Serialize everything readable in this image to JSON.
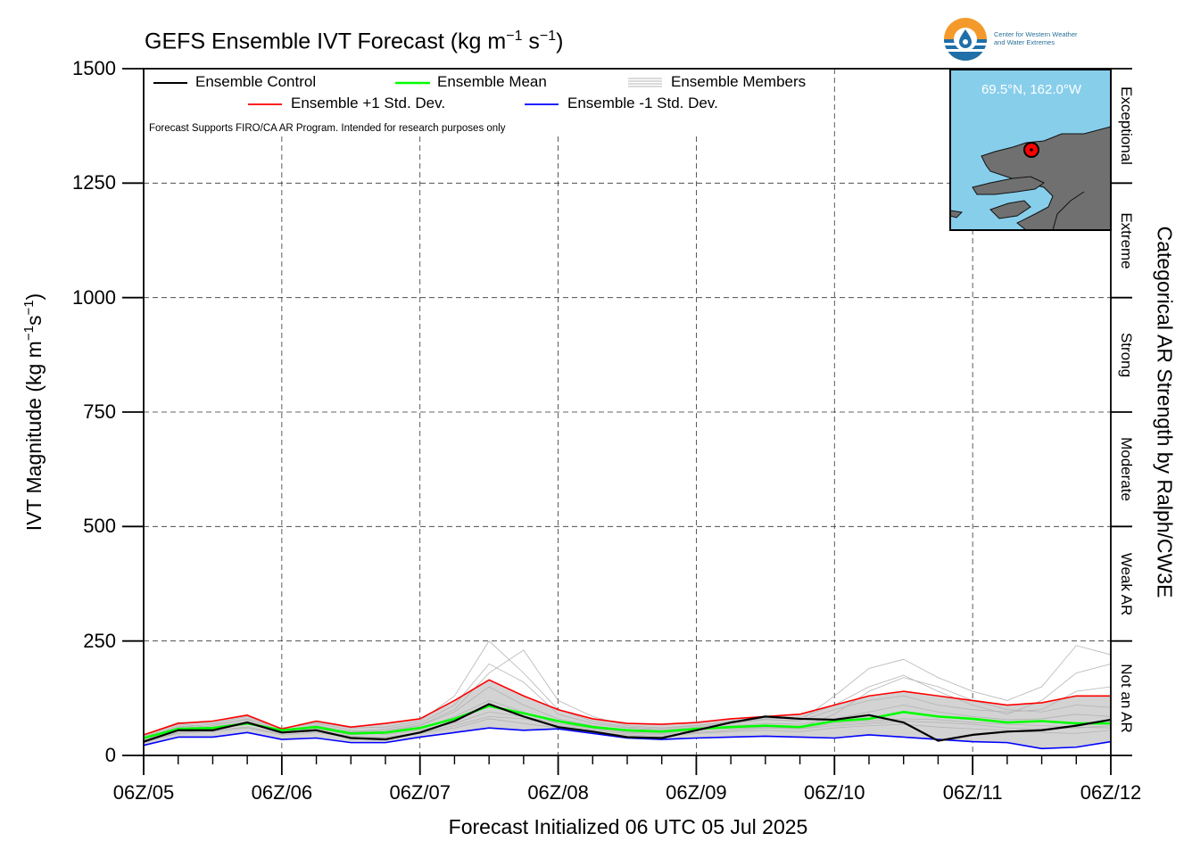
{
  "title": {
    "main": "GEFS Ensemble IVT Forecast (kg m",
    "sup1": "−1",
    "mid": " s",
    "sup2": "−1",
    "end": ")"
  },
  "logo": {
    "line1": "Center for Western Weather",
    "line2": "and Water Extremes"
  },
  "inset": {
    "location_label": "69.5°N, 162.0°W",
    "ocean_color": "#87ceeb",
    "land_color": "#707070",
    "marker_color": "#ff0000"
  },
  "legend": {
    "control": "Ensemble Control",
    "mean": "Ensemble Mean",
    "members": "Ensemble Members",
    "plus_std": "Ensemble +1 Std. Dev.",
    "minus_std": "Ensemble -1 Std. Dev."
  },
  "disclaimer": "Forecast Supports FIRO/CA AR Program. Intended for research purposes only",
  "y_axis_title": {
    "prefix": "IVT Magnitude (kg m",
    "sup1": "−1",
    "mid": "s",
    "sup2": "−1",
    "end": ")"
  },
  "x_axis_title": "Forecast Initialized 06 UTC 05 Jul 2025",
  "right_axis_title": "Categorical AR Strength by Ralph/CW3E",
  "categories_right": [
    {
      "label": "Exceptional",
      "low": 1250,
      "high": 1500
    },
    {
      "label": "Extreme",
      "low": 1000,
      "high": 1250
    },
    {
      "label": "Strong",
      "low": 750,
      "high": 1000
    },
    {
      "label": "Moderate",
      "low": 500,
      "high": 750
    },
    {
      "label": "Weak AR",
      "low": 250,
      "high": 500
    },
    {
      "label": "Not an AR",
      "low": 0,
      "high": 250
    }
  ],
  "chart_data": {
    "type": "line",
    "title": "GEFS Ensemble IVT Forecast (kg m−1 s−1)",
    "xlabel": "Forecast Initialized 06 UTC 05 Jul 2025",
    "ylabel": "IVT Magnitude (kg m−1s−1)",
    "ylim": [
      0,
      1500
    ],
    "xlim": [
      0,
      168
    ],
    "x_unit": "forecast hours",
    "y_ticks": [
      "0",
      "250",
      "500",
      "750",
      "1000",
      "1250",
      "1500"
    ],
    "x_tick_labels": [
      "06Z/05",
      "06Z/06",
      "06Z/07",
      "06Z/08",
      "06Z/09",
      "06Z/10",
      "06Z/11",
      "06Z/12"
    ],
    "grid": true,
    "colors": {
      "control": "#000000",
      "mean": "#00ff00",
      "plus_std": "#ff0000",
      "minus_std": "#0000ff",
      "members": "#b4b4b4",
      "spread_fill": "#d3d3d3"
    },
    "x": [
      0,
      6,
      12,
      18,
      24,
      30,
      36,
      42,
      48,
      54,
      60,
      66,
      72,
      78,
      84,
      90,
      96,
      102,
      108,
      114,
      120,
      126,
      132,
      138,
      144,
      150,
      156,
      162,
      168
    ],
    "series": [
      {
        "name": "Ensemble Control",
        "values": [
          30,
          55,
          55,
          72,
          50,
          55,
          38,
          35,
          50,
          75,
          112,
          85,
          62,
          52,
          40,
          38,
          55,
          72,
          85,
          80,
          78,
          88,
          72,
          32,
          45,
          52,
          55,
          65,
          78
        ]
      },
      {
        "name": "Ensemble Mean",
        "values": [
          38,
          58,
          60,
          70,
          55,
          62,
          48,
          50,
          60,
          80,
          108,
          92,
          75,
          62,
          55,
          52,
          58,
          62,
          65,
          62,
          75,
          80,
          95,
          85,
          80,
          72,
          75,
          70,
          70
        ]
      },
      {
        "name": "Ensemble +1 Std. Dev.",
        "values": [
          45,
          70,
          75,
          88,
          58,
          75,
          62,
          70,
          80,
          120,
          165,
          130,
          100,
          80,
          70,
          68,
          72,
          80,
          85,
          90,
          110,
          130,
          140,
          130,
          120,
          110,
          115,
          130,
          130
        ]
      },
      {
        "name": "Ensemble -1 Std. Dev.",
        "values": [
          22,
          40,
          40,
          50,
          35,
          38,
          28,
          28,
          40,
          50,
          60,
          55,
          58,
          48,
          38,
          35,
          38,
          40,
          42,
          40,
          38,
          45,
          40,
          35,
          30,
          28,
          15,
          18,
          30
        ]
      }
    ],
    "members": [
      [
        32,
        60,
        62,
        75,
        52,
        58,
        45,
        48,
        58,
        85,
        120,
        95,
        70,
        60,
        50,
        48,
        55,
        65,
        70,
        68,
        80,
        95,
        110,
        95,
        85,
        78,
        80,
        90,
        85
      ],
      [
        40,
        65,
        58,
        68,
        56,
        65,
        50,
        52,
        65,
        95,
        150,
        110,
        80,
        65,
        55,
        52,
        60,
        58,
        62,
        60,
        90,
        140,
        170,
        150,
        120,
        100,
        95,
        110,
        105
      ],
      [
        35,
        55,
        65,
        80,
        60,
        70,
        55,
        45,
        55,
        70,
        95,
        85,
        70,
        58,
        52,
        50,
        55,
        60,
        64,
        58,
        70,
        75,
        80,
        78,
        72,
        68,
        65,
        62,
        60
      ],
      [
        42,
        70,
        60,
        72,
        50,
        62,
        52,
        58,
        70,
        110,
        200,
        160,
        90,
        70,
        60,
        55,
        62,
        70,
        78,
        75,
        130,
        190,
        210,
        170,
        140,
        120,
        150,
        240,
        220
      ],
      [
        28,
        50,
        55,
        62,
        48,
        55,
        42,
        40,
        50,
        65,
        85,
        80,
        66,
        55,
        48,
        46,
        50,
        55,
        60,
        58,
        65,
        70,
        75,
        72,
        68,
        60,
        58,
        60,
        65
      ],
      [
        45,
        72,
        70,
        85,
        58,
        72,
        60,
        62,
        75,
        130,
        250,
        180,
        100,
        75,
        62,
        58,
        65,
        75,
        80,
        82,
        110,
        150,
        175,
        140,
        110,
        90,
        120,
        180,
        200
      ],
      [
        30,
        48,
        52,
        60,
        45,
        50,
        40,
        38,
        48,
        60,
        80,
        70,
        60,
        50,
        45,
        42,
        48,
        52,
        55,
        52,
        60,
        65,
        68,
        62,
        58,
        55,
        50,
        48,
        55
      ],
      [
        38,
        62,
        68,
        78,
        55,
        66,
        50,
        55,
        66,
        100,
        180,
        230,
        120,
        85,
        65,
        60,
        66,
        72,
        78,
        76,
        100,
        120,
        130,
        110,
        100,
        95,
        100,
        140,
        150
      ]
    ]
  }
}
